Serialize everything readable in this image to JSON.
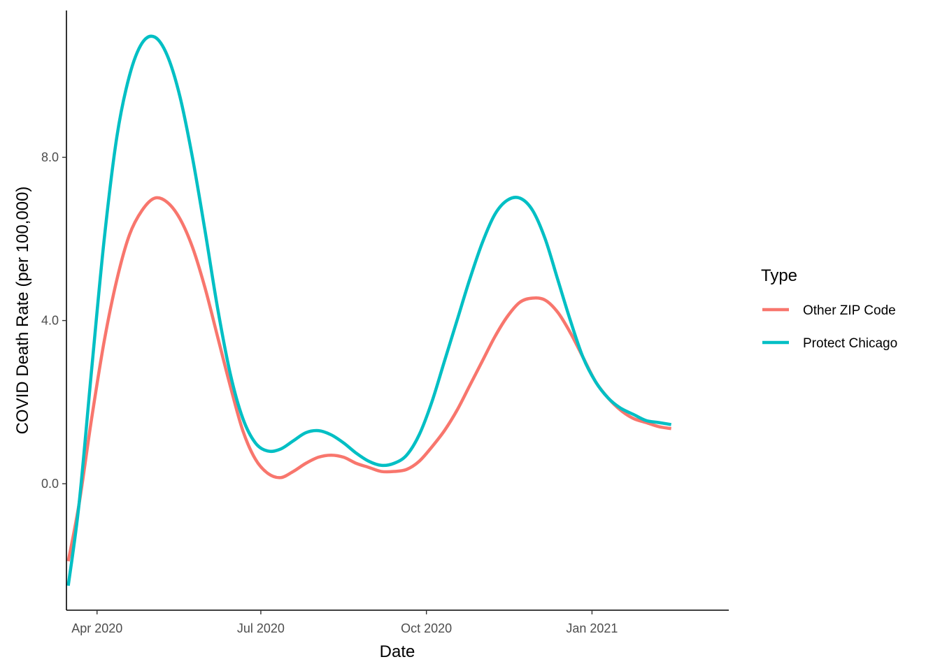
{
  "chart_data": {
    "type": "line",
    "xlabel": "Date",
    "ylabel": "COVID Death Rate (per 100,000)",
    "xlim": [
      "2020-03-15",
      "2021-03-18"
    ],
    "ylim": [
      -3.1,
      11.6
    ],
    "y_ticks": [
      {
        "value": 0.0,
        "label": "0.0"
      },
      {
        "value": 4.0,
        "label": "4.0"
      },
      {
        "value": 8.0,
        "label": "8.0"
      }
    ],
    "x_ticks": [
      {
        "value": "2020-04-01",
        "label": "Apr 2020"
      },
      {
        "value": "2020-07-01",
        "label": "Jul 2020"
      },
      {
        "value": "2020-10-01",
        "label": "Oct 2020"
      },
      {
        "value": "2021-01-01",
        "label": "Jan 2021"
      }
    ],
    "grid": false,
    "legend": {
      "title": "Type",
      "placement": "right"
    },
    "series": [
      {
        "name": "Other ZIP Code",
        "color": "#F8766D",
        "points": [
          [
            "2020-03-16",
            -1.9
          ],
          [
            "2020-03-22",
            -0.5
          ],
          [
            "2020-03-29",
            1.6
          ],
          [
            "2020-04-05",
            3.5
          ],
          [
            "2020-04-12",
            5.0
          ],
          [
            "2020-04-19",
            6.1
          ],
          [
            "2020-04-26",
            6.7
          ],
          [
            "2020-05-03",
            7.0
          ],
          [
            "2020-05-10",
            6.9
          ],
          [
            "2020-05-17",
            6.5
          ],
          [
            "2020-05-24",
            5.8
          ],
          [
            "2020-05-31",
            4.8
          ],
          [
            "2020-06-07",
            3.6
          ],
          [
            "2020-06-14",
            2.4
          ],
          [
            "2020-06-21",
            1.3
          ],
          [
            "2020-06-28",
            0.6
          ],
          [
            "2020-07-05",
            0.25
          ],
          [
            "2020-07-12",
            0.15
          ],
          [
            "2020-07-19",
            0.3
          ],
          [
            "2020-07-26",
            0.5
          ],
          [
            "2020-08-02",
            0.65
          ],
          [
            "2020-08-09",
            0.7
          ],
          [
            "2020-08-16",
            0.65
          ],
          [
            "2020-08-23",
            0.5
          ],
          [
            "2020-08-30",
            0.4
          ],
          [
            "2020-09-06",
            0.3
          ],
          [
            "2020-09-13",
            0.3
          ],
          [
            "2020-09-20",
            0.35
          ],
          [
            "2020-09-27",
            0.55
          ],
          [
            "2020-10-04",
            0.9
          ],
          [
            "2020-10-11",
            1.3
          ],
          [
            "2020-10-18",
            1.8
          ],
          [
            "2020-10-25",
            2.4
          ],
          [
            "2020-11-01",
            3.0
          ],
          [
            "2020-11-08",
            3.6
          ],
          [
            "2020-11-15",
            4.1
          ],
          [
            "2020-11-22",
            4.45
          ],
          [
            "2020-11-29",
            4.55
          ],
          [
            "2020-12-06",
            4.5
          ],
          [
            "2020-12-13",
            4.2
          ],
          [
            "2020-12-20",
            3.7
          ],
          [
            "2020-12-27",
            3.1
          ],
          [
            "2021-01-03",
            2.5
          ],
          [
            "2021-01-10",
            2.1
          ],
          [
            "2021-01-17",
            1.8
          ],
          [
            "2021-01-24",
            1.6
          ],
          [
            "2021-01-31",
            1.5
          ],
          [
            "2021-02-07",
            1.4
          ],
          [
            "2021-02-14",
            1.35
          ]
        ]
      },
      {
        "name": "Protect Chicago",
        "color": "#00BFC4",
        "points": [
          [
            "2020-03-16",
            -2.5
          ],
          [
            "2020-03-22",
            -0.5
          ],
          [
            "2020-03-29",
            2.8
          ],
          [
            "2020-04-05",
            6.0
          ],
          [
            "2020-04-12",
            8.5
          ],
          [
            "2020-04-19",
            10.0
          ],
          [
            "2020-04-26",
            10.8
          ],
          [
            "2020-05-03",
            10.95
          ],
          [
            "2020-05-10",
            10.5
          ],
          [
            "2020-05-17",
            9.5
          ],
          [
            "2020-05-24",
            8.0
          ],
          [
            "2020-05-31",
            6.2
          ],
          [
            "2020-06-07",
            4.3
          ],
          [
            "2020-06-14",
            2.7
          ],
          [
            "2020-06-21",
            1.6
          ],
          [
            "2020-06-28",
            1.0
          ],
          [
            "2020-07-05",
            0.8
          ],
          [
            "2020-07-12",
            0.85
          ],
          [
            "2020-07-19",
            1.05
          ],
          [
            "2020-07-26",
            1.25
          ],
          [
            "2020-08-02",
            1.3
          ],
          [
            "2020-08-09",
            1.2
          ],
          [
            "2020-08-16",
            1.0
          ],
          [
            "2020-08-23",
            0.75
          ],
          [
            "2020-08-30",
            0.55
          ],
          [
            "2020-09-06",
            0.45
          ],
          [
            "2020-09-13",
            0.5
          ],
          [
            "2020-09-20",
            0.7
          ],
          [
            "2020-09-27",
            1.2
          ],
          [
            "2020-10-04",
            2.0
          ],
          [
            "2020-10-11",
            3.0
          ],
          [
            "2020-10-18",
            4.0
          ],
          [
            "2020-10-25",
            5.0
          ],
          [
            "2020-11-01",
            5.9
          ],
          [
            "2020-11-08",
            6.6
          ],
          [
            "2020-11-15",
            6.95
          ],
          [
            "2020-11-22",
            7.0
          ],
          [
            "2020-11-29",
            6.7
          ],
          [
            "2020-12-06",
            6.0
          ],
          [
            "2020-12-13",
            5.0
          ],
          [
            "2020-12-20",
            4.0
          ],
          [
            "2020-12-27",
            3.1
          ],
          [
            "2021-01-03",
            2.5
          ],
          [
            "2021-01-10",
            2.1
          ],
          [
            "2021-01-17",
            1.85
          ],
          [
            "2021-01-24",
            1.7
          ],
          [
            "2021-01-31",
            1.55
          ],
          [
            "2021-02-07",
            1.5
          ],
          [
            "2021-02-14",
            1.45
          ]
        ]
      }
    ]
  }
}
